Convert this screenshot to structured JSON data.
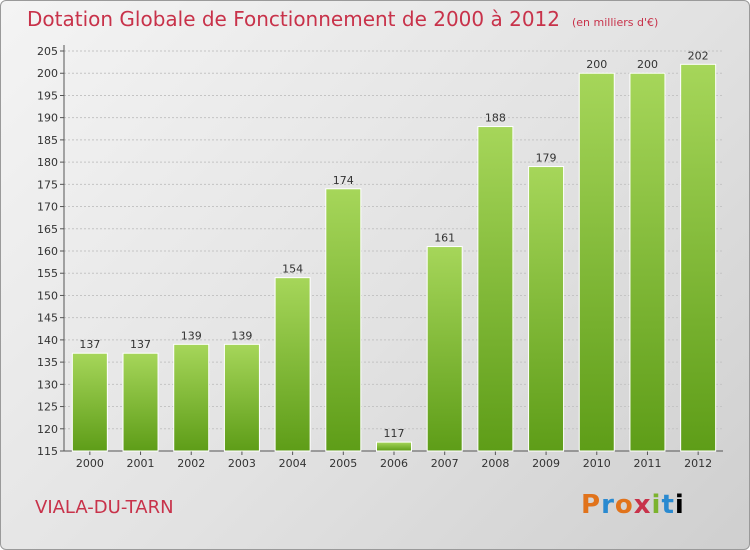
{
  "title": "Dotation Globale de Fonctionnement de 2000 à 2012",
  "unit_note": "(en milliers d'€)",
  "commune": "VIALA-DU-TARN",
  "brand": {
    "letters": [
      "P",
      "r",
      "o",
      "x",
      "i",
      "t",
      "i"
    ]
  },
  "colors": {
    "bar_top": "#a6d65a",
    "bar_bottom": "#5e9d18",
    "title": "#c8324a"
  },
  "chart_data": {
    "type": "bar",
    "title": "Dotation Globale de Fonctionnement de 2000 à 2012",
    "subtitle": "(en milliers d'€)",
    "xlabel": "",
    "ylabel": "",
    "categories": [
      "2000",
      "2001",
      "2002",
      "2003",
      "2004",
      "2005",
      "2006",
      "2007",
      "2008",
      "2009",
      "2010",
      "2011",
      "2012"
    ],
    "values": [
      137,
      137,
      139,
      139,
      154,
      174,
      117,
      161,
      188,
      179,
      200,
      200,
      202
    ],
    "ylim": [
      115,
      205
    ],
    "yticks": [
      115,
      120,
      125,
      130,
      135,
      140,
      145,
      150,
      155,
      160,
      165,
      170,
      175,
      180,
      185,
      190,
      195,
      200,
      205
    ],
    "grid": true,
    "legend": "none"
  }
}
